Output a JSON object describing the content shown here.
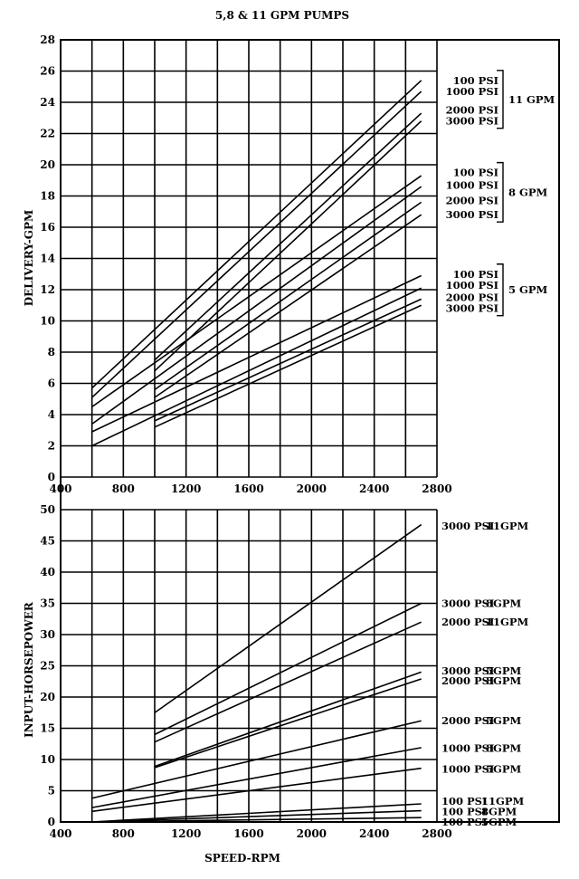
{
  "chart_data": [
    {
      "type": "line",
      "title": "5,8 & 11 GPM PUMPS",
      "xlabel": "",
      "ylabel": "DELIVERY-GPM",
      "xlim": [
        400,
        2800
      ],
      "ylim": [
        0,
        28
      ],
      "xticks": [
        400,
        800,
        1200,
        1600,
        2000,
        2400,
        2800
      ],
      "yticks": [
        0,
        2,
        4,
        6,
        8,
        10,
        12,
        14,
        16,
        18,
        20,
        22,
        24,
        26,
        28
      ],
      "grid": true,
      "series": [
        {
          "name": "11 GPM 100 PSI",
          "x": [
            600,
            2700
          ],
          "y": [
            5.7,
            25.4
          ]
        },
        {
          "name": "11 GPM 1000 PSI",
          "x": [
            600,
            2700
          ],
          "y": [
            5.1,
            24.7
          ]
        },
        {
          "name": "11 GPM 2000 PSI",
          "x": [
            1000,
            2700
          ],
          "y": [
            7.5,
            23.3
          ]
        },
        {
          "name": "11 GPM 3000 PSI",
          "x": [
            1000,
            2700
          ],
          "y": [
            6.8,
            22.8
          ]
        },
        {
          "name": "8 GPM 100 PSI",
          "x": [
            600,
            2700
          ],
          "y": [
            4.5,
            19.3
          ]
        },
        {
          "name": "8 GPM 1000 PSI",
          "x": [
            600,
            2700
          ],
          "y": [
            3.4,
            18.6
          ]
        },
        {
          "name": "8 GPM 2000 PSI",
          "x": [
            1000,
            2700
          ],
          "y": [
            5.6,
            17.6
          ]
        },
        {
          "name": "8 GPM 3000 PSI",
          "x": [
            1000,
            2700
          ],
          "y": [
            5.1,
            16.8
          ]
        },
        {
          "name": "5 GPM 100 PSI",
          "x": [
            600,
            2700
          ],
          "y": [
            2.9,
            12.9
          ]
        },
        {
          "name": "5 GPM 1000 PSI",
          "x": [
            600,
            2700
          ],
          "y": [
            2.0,
            12.1
          ]
        },
        {
          "name": "5 GPM 2000 PSI",
          "x": [
            1000,
            2700
          ],
          "y": [
            3.6,
            11.4
          ]
        },
        {
          "name": "5 GPM 3000 PSI",
          "x": [
            1000,
            2700
          ],
          "y": [
            3.2,
            11.0
          ]
        }
      ],
      "legend_groups": [
        {
          "group": "11 GPM",
          "items": [
            "100 PSI",
            "1000 PSI",
            "2000 PSI",
            "3000 PSI"
          ],
          "at_values": [
            25.4,
            24.7,
            23.5,
            22.8
          ]
        },
        {
          "group": "8 GPM",
          "items": [
            "100 PSI",
            "1000 PSI",
            "2000 PSI",
            "3000 PSI"
          ],
          "at_values": [
            19.5,
            18.7,
            17.7,
            16.8
          ]
        },
        {
          "group": "5 GPM",
          "items": [
            "100 PSI",
            "1000 PSI",
            "2000 PSI",
            "3000 PSI"
          ],
          "at_values": [
            13.0,
            12.3,
            11.5,
            10.8
          ]
        }
      ],
      "legend_placement": "right"
    },
    {
      "type": "line",
      "title": "",
      "xlabel": "SPEED-RPM",
      "ylabel": "INPUT-HORSEPOWER",
      "xlim": [
        400,
        2800
      ],
      "ylim": [
        0,
        50
      ],
      "xticks": [
        400,
        800,
        1200,
        1600,
        2000,
        2400,
        2800
      ],
      "yticks": [
        0,
        5,
        10,
        15,
        20,
        25,
        30,
        35,
        40,
        45,
        50
      ],
      "grid": true,
      "series": [
        {
          "name": "3000 PSI 11GPM",
          "psi": "3000 PSI",
          "gpm": "11GPM",
          "x": [
            1000,
            2700
          ],
          "y": [
            17.5,
            47.6
          ],
          "label_value": 47.4
        },
        {
          "name": "3000 PSI 8GPM",
          "psi": "3000 PSI",
          "gpm": "8GPM",
          "x": [
            1000,
            2700
          ],
          "y": [
            14.0,
            35.0
          ],
          "label_value": 35.0
        },
        {
          "name": "2000 PSI 11GPM",
          "psi": "2000 PSI",
          "gpm": "11GPM",
          "x": [
            1000,
            2700
          ],
          "y": [
            12.8,
            32.0
          ],
          "label_value": 32.0
        },
        {
          "name": "3000 PSI 5GPM",
          "psi": "3000 PSI",
          "gpm": "5GPM",
          "x": [
            1000,
            2700
          ],
          "y": [
            8.9,
            24.0
          ],
          "label_value": 24.2
        },
        {
          "name": "2000 PSI 8GPM",
          "psi": "2000 PSI",
          "gpm": "8GPM",
          "x": [
            1000,
            2700
          ],
          "y": [
            8.7,
            22.9
          ],
          "label_value": 22.6
        },
        {
          "name": "2000 PSI 5GPM",
          "psi": "2000 PSI",
          "gpm": "5GPM",
          "x": [
            600,
            2700
          ],
          "y": [
            3.8,
            16.2
          ],
          "label_value": 16.2
        },
        {
          "name": "1000 PSI 8GPM",
          "psi": "1000 PSI",
          "gpm": "8GPM",
          "x": [
            600,
            2700
          ],
          "y": [
            2.3,
            11.9
          ],
          "label_value": 11.8
        },
        {
          "name": "1000 PSI 5GPM",
          "psi": "1000 PSI",
          "gpm": "5GPM",
          "x": [
            600,
            2700
          ],
          "y": [
            1.7,
            8.6
          ],
          "label_value": 8.5
        },
        {
          "name": "100 PSI 11GPM",
          "psi": "100 PSI",
          "gpm": "11GPM",
          "x": [
            600,
            2700
          ],
          "y": [
            0,
            2.9
          ],
          "label_value": 3.3
        },
        {
          "name": "100 PSI 8GPM",
          "psi": "100 PSI",
          "gpm": "8GPM",
          "x": [
            600,
            2700
          ],
          "y": [
            0,
            1.8
          ],
          "label_value": 1.7
        },
        {
          "name": "100 PSI 5GPM",
          "psi": "100 PSI",
          "gpm": "5GPM",
          "x": [
            600,
            2700
          ],
          "y": [
            0,
            0.7
          ],
          "label_value": 0.0
        }
      ],
      "legend_placement": "right"
    }
  ]
}
